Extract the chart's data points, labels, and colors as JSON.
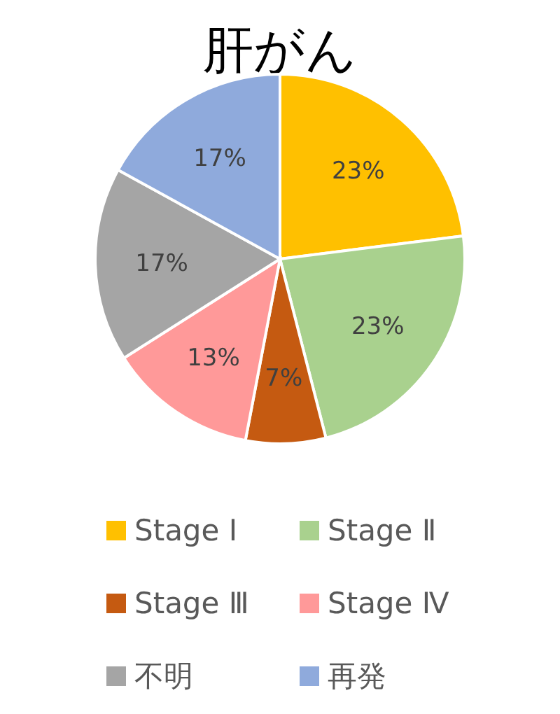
{
  "chart_data": {
    "type": "pie",
    "title": "肝がん",
    "categories": [
      "Stage Ⅰ",
      "Stage Ⅱ",
      "Stage Ⅲ",
      "Stage Ⅳ",
      "不明",
      "再発"
    ],
    "values": [
      23,
      23,
      7,
      13,
      17,
      17
    ],
    "colors": [
      "#ffc000",
      "#a9d18e",
      "#c55a11",
      "#ff9999",
      "#a5a5a5",
      "#8faadc"
    ],
    "value_labels": [
      "23%",
      "23%",
      "7%",
      "13%",
      "17%",
      "17%"
    ],
    "legend": "bottom"
  }
}
